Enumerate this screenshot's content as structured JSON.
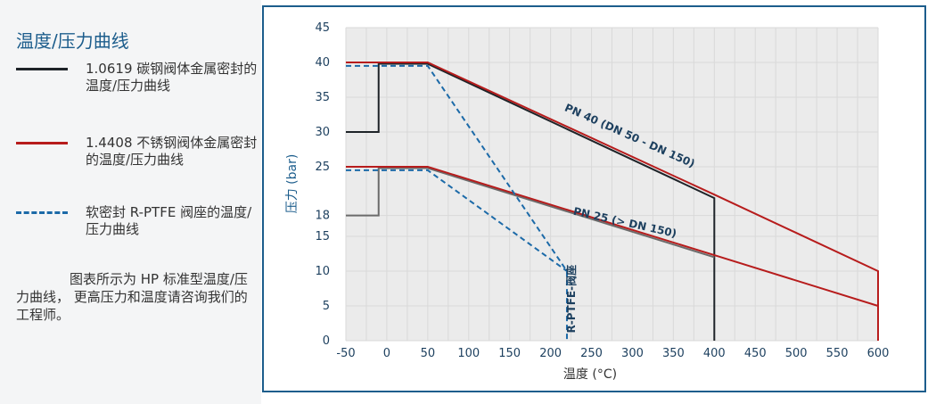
{
  "panel": {
    "title": "温度/压力曲线",
    "legend": [
      {
        "label": "1.0619 碳钢阀体金属密封的温度/压力曲线",
        "color": "#1e2328",
        "style": "solid"
      },
      {
        "label": "1.4408 不锈钢阀体金属密封的温度/压力曲线",
        "color": "#b71c1c",
        "style": "solid"
      },
      {
        "label": "软密封 R-PTFE 阀座的温度/压力曲线",
        "color": "#1c6aa8",
        "style": "dashed"
      }
    ],
    "note": "图表所示为 HP 标准型温度/压力曲线， 更高压力和温度请咨询我们的工程师。"
  },
  "chart_data": {
    "type": "line",
    "xlabel": "温度 (°C)",
    "ylabel": "压力 (bar)",
    "xlim": [
      -50,
      600
    ],
    "ylim": [
      0,
      45
    ],
    "xticks": [
      -50,
      0,
      50,
      100,
      150,
      200,
      250,
      300,
      350,
      400,
      450,
      500,
      550,
      600
    ],
    "yticks": [
      0,
      5,
      10,
      15,
      18,
      25,
      30,
      35,
      40,
      45
    ],
    "grid": true,
    "series": [
      {
        "name": "1.0619 碳钢阀体金属密封的温度/压力曲线 PN 40",
        "color": "#1e2328",
        "style": "solid",
        "x": [
          -50,
          -10,
          -10,
          50,
          400,
          400
        ],
        "y": [
          30,
          30,
          39.8,
          39.8,
          20.5,
          0
        ]
      },
      {
        "name": "1.0619 碳钢阀体金属密封的温度/压力曲线 PN 25",
        "color": "#6b6b6b",
        "style": "solid",
        "x": [
          -50,
          -10,
          -10,
          50,
          400
        ],
        "y": [
          18,
          18,
          24.8,
          24.8,
          12
        ]
      },
      {
        "name": "1.4408 不锈钢阀体金属密封的温度/压力曲线 PN 40",
        "color": "#b71c1c",
        "style": "solid",
        "x": [
          -50,
          50,
          400,
          600,
          600
        ],
        "y": [
          40,
          40,
          21,
          10,
          0
        ]
      },
      {
        "name": "1.4408 不锈钢阀体金属密封的温度/压力曲线 PN 25",
        "color": "#b71c1c",
        "style": "solid",
        "x": [
          -50,
          50,
          400,
          600,
          600
        ],
        "y": [
          25,
          25,
          12.3,
          5,
          0
        ]
      },
      {
        "name": "软密封 R-PTFE 阀座的温度/压力曲线 PN 40",
        "color": "#1c6aa8",
        "style": "dashed",
        "x": [
          -50,
          50,
          220,
          220
        ],
        "y": [
          39.5,
          39.5,
          10,
          0
        ]
      },
      {
        "name": "软密封 R-PTFE 阀座的温度/压力曲线 PN 25",
        "color": "#1c6aa8",
        "style": "dashed",
        "x": [
          -50,
          50,
          220
        ],
        "y": [
          24.5,
          24.5,
          10
        ]
      }
    ],
    "annotations": [
      {
        "text": "PN 40 (DN 50 - DN 150)",
        "x": 295,
        "y": 29,
        "angle": 24
      },
      {
        "text": "PN 25 (> DN 150)",
        "x": 290,
        "y": 16.5,
        "angle": 12.5
      },
      {
        "text": "R-PTFE-阀座",
        "x": 230,
        "y": 6,
        "angle": -90
      }
    ]
  }
}
